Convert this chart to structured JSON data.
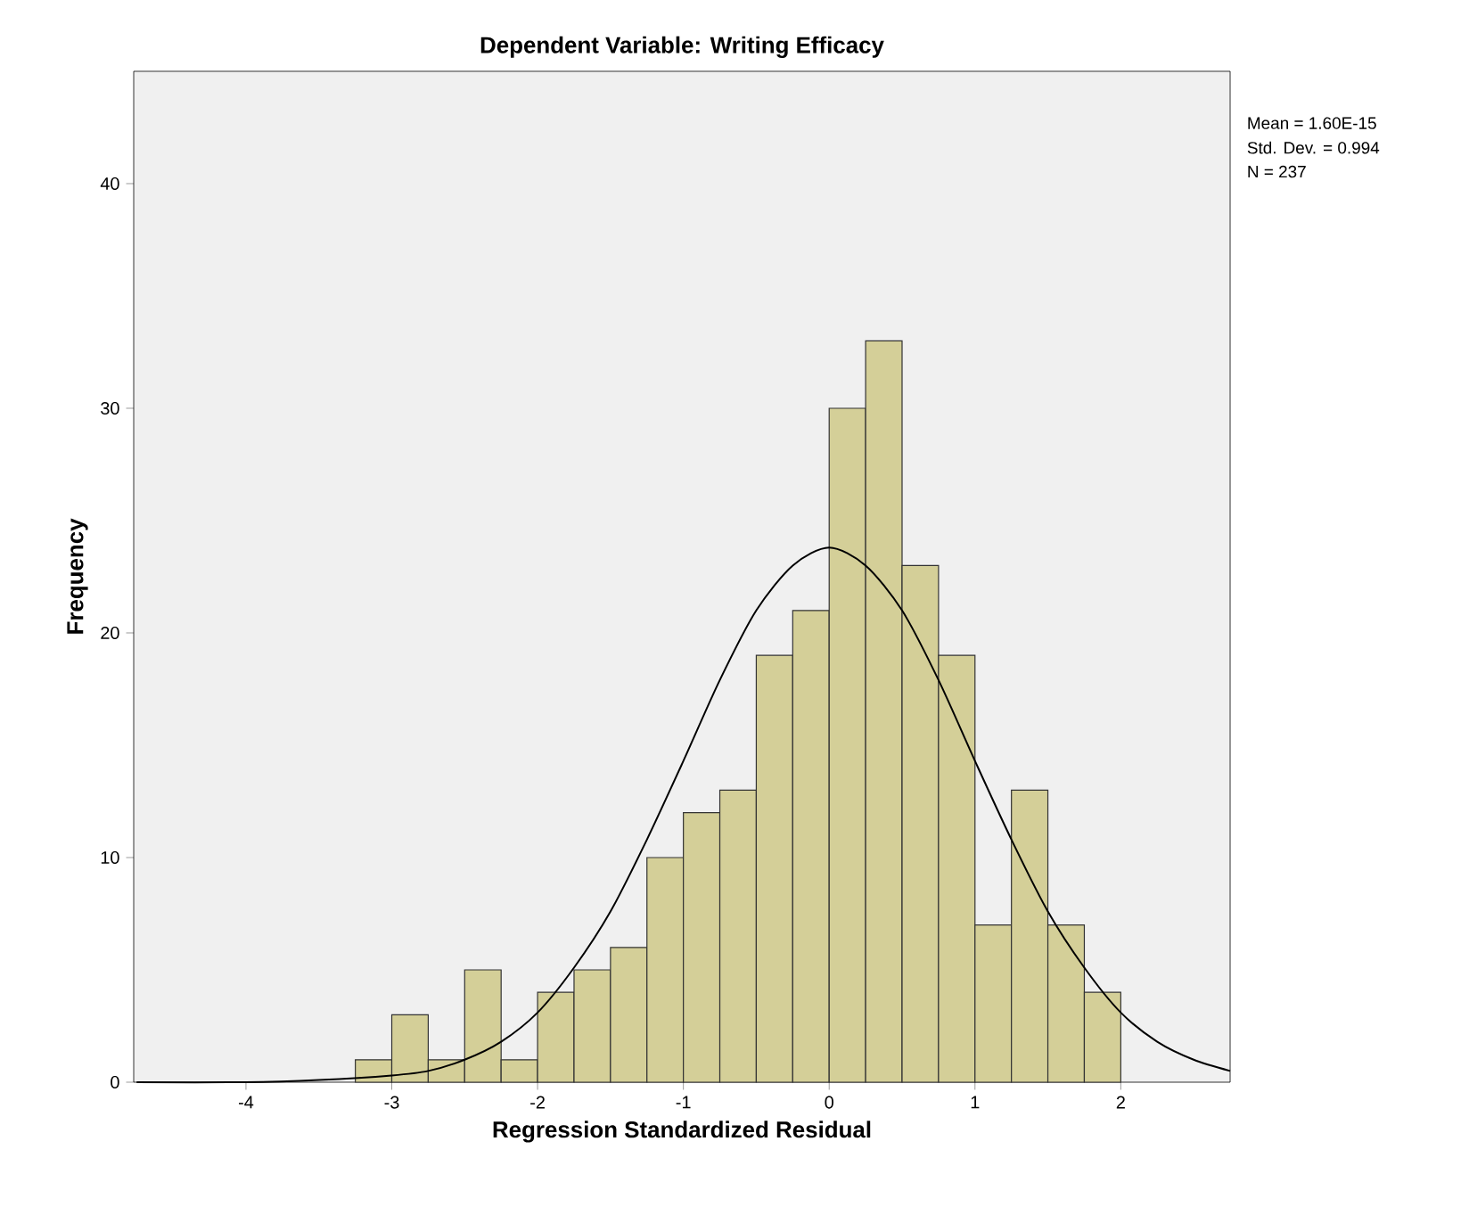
{
  "chart_data": {
    "type": "histogram",
    "title": "Dependent Variable: Writing Efficacy",
    "xlabel": "Regression Standardized Residual",
    "ylabel": "Frequency",
    "bins": [
      -3.25,
      -3.0,
      -2.75,
      -2.5,
      -2.25,
      -2.0,
      -1.75,
      -1.5,
      -1.25,
      -1.0,
      -0.75,
      -0.5,
      -0.25,
      0.0,
      0.25,
      0.5,
      0.75,
      1.0,
      1.25,
      1.5,
      1.75,
      2.0
    ],
    "values": [
      1,
      3,
      1,
      5,
      1,
      4,
      5,
      6,
      10,
      12,
      13,
      19,
      21,
      30,
      33,
      23,
      19,
      7,
      13,
      7,
      4
    ],
    "color": "#d4cf98",
    "series": [
      {
        "type": "line",
        "color": "#000000",
        "x": [
          -4.75,
          -4.0,
          -3.5,
          -3.0,
          -2.75,
          -2.5,
          -2.25,
          -2.0,
          -1.75,
          -1.5,
          -1.25,
          -1.0,
          -0.75,
          -0.5,
          -0.25,
          0.0,
          0.25,
          0.5,
          0.75,
          1.0,
          1.25,
          1.5,
          1.75,
          2.0,
          2.25,
          2.5,
          2.75
        ],
        "values": [
          0.0,
          0.0,
          0.1,
          0.3,
          0.5,
          1.0,
          1.8,
          3.1,
          5.1,
          7.6,
          10.8,
          14.3,
          17.9,
          21.0,
          23.0,
          23.8,
          23.0,
          21.0,
          17.9,
          14.3,
          10.8,
          7.6,
          5.1,
          3.1,
          1.8,
          1.0,
          0.5
        ]
      }
    ],
    "xlim": [
      -4.77,
      2.75
    ],
    "ylim": [
      0,
      45
    ],
    "xticks": [
      -4,
      -3,
      -2,
      -1,
      0,
      1,
      2
    ],
    "yticks": [
      0,
      10,
      20,
      30,
      40
    ],
    "grid": false,
    "annotations": [
      "Mean = 1.60E-15",
      "Std. Dev. = 0.994",
      "N = 237"
    ]
  }
}
